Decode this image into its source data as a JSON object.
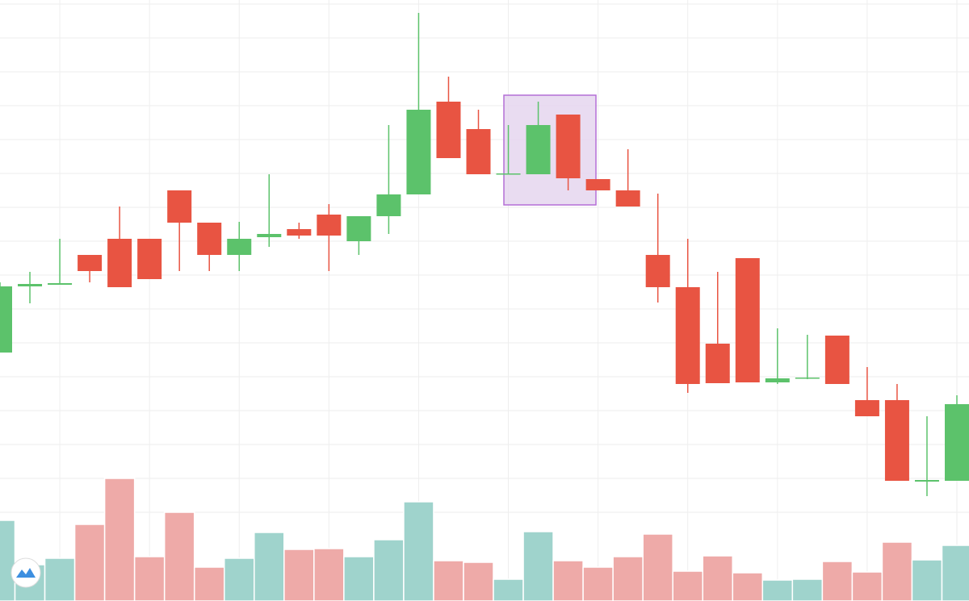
{
  "chart_data": {
    "type": "candlestick",
    "x": [
      0,
      1,
      2,
      3,
      4,
      5,
      6,
      7,
      8,
      9,
      10,
      11,
      12,
      13,
      14,
      15,
      16,
      17,
      18,
      19,
      20,
      21,
      22,
      23,
      24,
      25,
      26,
      27,
      28,
      29,
      30,
      31,
      32
    ],
    "open": [
      308,
      390,
      392,
      429,
      449,
      449,
      509,
      469,
      429,
      451,
      461,
      479,
      446,
      477,
      504,
      619,
      585,
      529,
      529,
      603,
      523,
      509,
      429,
      389,
      319,
      425,
      271,
      276,
      329,
      249,
      249,
      148,
      149
    ],
    "close": [
      390,
      393,
      394,
      409,
      389,
      399,
      469,
      429,
      449,
      455,
      453,
      453,
      477,
      504,
      609,
      549,
      529,
      530,
      590,
      524,
      509,
      489,
      389,
      269,
      270,
      271,
      276,
      277,
      269,
      229,
      149,
      150,
      244
    ],
    "high": [
      395,
      408,
      449,
      429,
      489,
      449,
      509,
      469,
      470,
      529,
      469,
      492,
      477,
      590,
      729,
      650,
      609,
      590,
      619,
      603,
      523,
      560,
      505,
      449,
      408,
      425,
      338,
      330,
      329,
      290,
      269,
      229,
      255
    ],
    "low": [
      308,
      369,
      392,
      395,
      389,
      399,
      409,
      409,
      409,
      439,
      449,
      409,
      429,
      455,
      504,
      549,
      529,
      529,
      529,
      509,
      509,
      489,
      370,
      258,
      270,
      271,
      269,
      275,
      269,
      229,
      149,
      130,
      149
    ],
    "volume": [
      100,
      45,
      53,
      95,
      152,
      55,
      110,
      42,
      53,
      85,
      64,
      65,
      55,
      76,
      123,
      50,
      48,
      27,
      86,
      50,
      42,
      55,
      83,
      37,
      56,
      35,
      26,
      27,
      49,
      36,
      73,
      51,
      69
    ],
    "up_color": "#5cc26b",
    "down_color": "#e85442",
    "volume_up_color": "#9fd3cc",
    "volume_down_color": "#eeaaa8",
    "xlim": [
      0,
      32
    ],
    "xticks": [
      2,
      5,
      8,
      11,
      14,
      17,
      20,
      23,
      26,
      29,
      32
    ],
    "ylim": [
      0,
      745
    ],
    "yticks": [
      110,
      152,
      194,
      236,
      278,
      320,
      362,
      404,
      446,
      488,
      530,
      572,
      614,
      656,
      698,
      740
    ],
    "grid": true
  }
}
